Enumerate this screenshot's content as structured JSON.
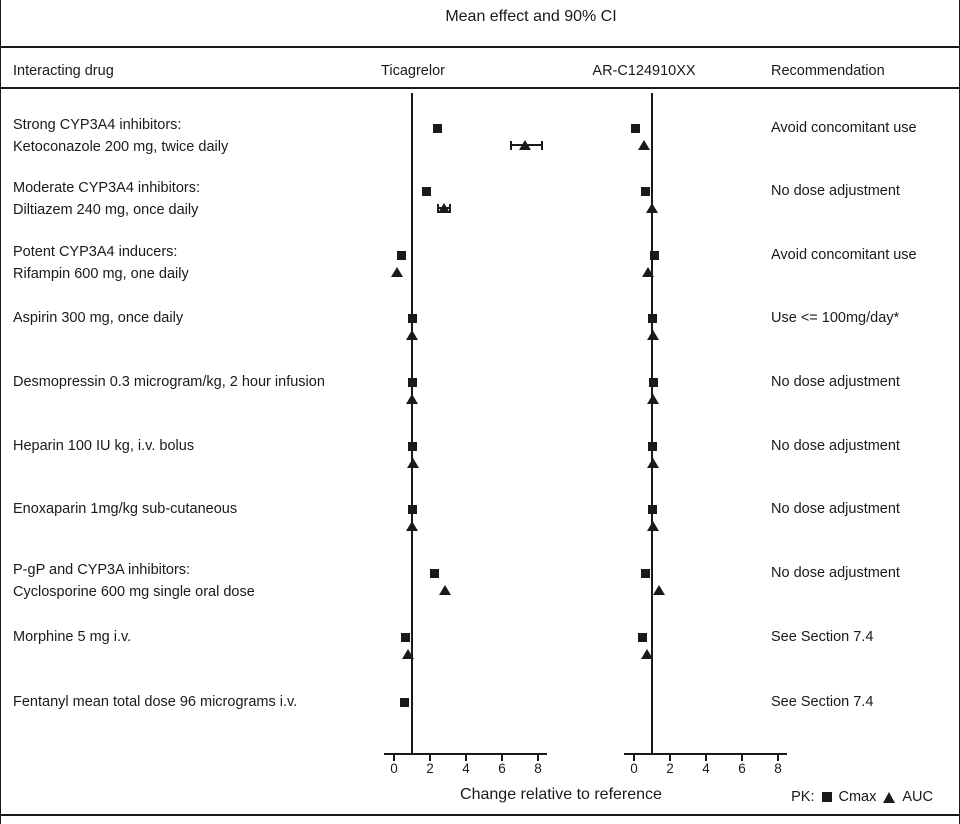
{
  "headers": {
    "interacting_drug": "Interacting drug",
    "recommendation": "Recommendation"
  },
  "legend": {
    "prefix": "PK:",
    "cmax": "Cmax",
    "auc": "AUC"
  },
  "chart_data": {
    "type": "scatter",
    "title": "Mean effect and 90% CI",
    "xlabel": "Change relative to reference",
    "panels": [
      "Ticagrelor",
      "AR-C124910XX"
    ],
    "x_ticks": [
      0,
      2,
      4,
      6,
      8
    ],
    "xlim": [
      -0.6,
      8.5
    ],
    "reference_line": 1,
    "markers": {
      "square": "Cmax",
      "triangle": "AUC"
    },
    "rows": [
      {
        "label": [
          "Strong CYP3A4 inhibitors:",
          "Ketoconazole 200 mg, twice daily"
        ],
        "recommendation": "Avoid concomitant use",
        "ticagrelor": {
          "cmax": 2.4,
          "auc": 7.3,
          "auc_ci": [
            6.5,
            8.2
          ]
        },
        "arc124910xx": {
          "cmax": 0.1,
          "auc": 0.55
        }
      },
      {
        "label": [
          "Moderate CYP3A4 inhibitors:",
          "Diltiazem 240 mg, once daily"
        ],
        "recommendation": "No dose adjustment",
        "ticagrelor": {
          "cmax": 1.8,
          "auc": 2.75,
          "auc_ci": [
            2.45,
            3.1
          ]
        },
        "arc124910xx": {
          "cmax": 0.65,
          "auc": 1.0
        }
      },
      {
        "label": [
          "Potent CYP3A4 inducers:",
          "Rifampin 600 mg, one daily"
        ],
        "recommendation": "Avoid concomitant use",
        "ticagrelor": {
          "cmax": 0.4,
          "auc": 0.15
        },
        "arc124910xx": {
          "cmax": 1.15,
          "auc": 0.8
        }
      },
      {
        "label": [
          "Aspirin 300 mg, once daily"
        ],
        "recommendation": "Use <= 100mg/day*",
        "ticagrelor": {
          "cmax": 1.0,
          "auc": 1.0
        },
        "arc124910xx": {
          "cmax": 1.05,
          "auc": 1.05
        }
      },
      {
        "label": [
          "Desmopressin 0.3 microgram/kg, 2 hour infusion"
        ],
        "recommendation": "No dose adjustment",
        "ticagrelor": {
          "cmax": 1.05,
          "auc": 1.0
        },
        "arc124910xx": {
          "cmax": 1.1,
          "auc": 1.05
        }
      },
      {
        "label": [
          "Heparin 100 IU kg, i.v. bolus"
        ],
        "recommendation": "No dose adjustment",
        "ticagrelor": {
          "cmax": 1.05,
          "auc": 1.05
        },
        "arc124910xx": {
          "cmax": 1.05,
          "auc": 1.05
        }
      },
      {
        "label": [
          "Enoxaparin 1mg/kg sub-cutaneous"
        ],
        "recommendation": "No dose adjustment",
        "ticagrelor": {
          "cmax": 1.0,
          "auc": 1.0
        },
        "arc124910xx": {
          "cmax": 1.05,
          "auc": 1.05
        }
      },
      {
        "label": [
          "P-gP and CYP3A inhibitors:",
          "Cyclosporine 600 mg single oral dose"
        ],
        "recommendation": "No dose adjustment",
        "ticagrelor": {
          "cmax": 2.25,
          "auc": 2.85
        },
        "arc124910xx": {
          "cmax": 0.65,
          "auc": 1.4
        }
      },
      {
        "label": [
          "Morphine 5 mg i.v."
        ],
        "recommendation": "See Section 7.4",
        "ticagrelor": {
          "cmax": 0.65,
          "auc": 0.75
        },
        "arc124910xx": {
          "cmax": 0.45,
          "auc": 0.7
        }
      },
      {
        "label": [
          "Fentanyl mean total dose 96 micrograms i.v."
        ],
        "recommendation": "See Section 7.4",
        "ticagrelor": {
          "cmax": 0.6
        },
        "arc124910xx": null
      }
    ]
  }
}
